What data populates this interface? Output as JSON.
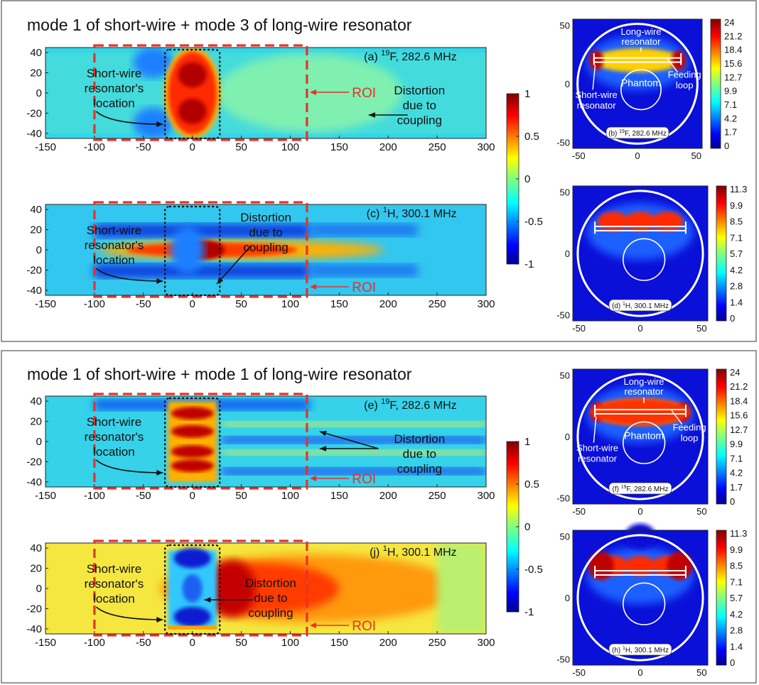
{
  "panel_groups": [
    {
      "title": "mode 1 of short-wire + mode 3 of long-wire resonator",
      "heatmaps": [
        {
          "label_a": "(a) ",
          "label_sup": "19",
          "label_b": "F, 282.6 MHz",
          "pattern": "mode3_19F",
          "x_ticks": [
            "-150",
            "-100",
            "-50",
            "0",
            "50",
            "100",
            "150",
            "200",
            "250",
            "300"
          ],
          "y_ticks": [
            "40",
            "20",
            "0",
            "-20",
            "-40"
          ],
          "ann_short": [
            "Short-wire",
            "resonator's",
            "location"
          ],
          "ann_distortion": [
            "Distortion",
            "due to",
            "coupling"
          ],
          "roi": "ROI"
        },
        {
          "label_a": "(c) ",
          "label_sup": "1",
          "label_b": "H, 300.1 MHz",
          "pattern": "mode3_1H",
          "x_ticks": [
            "-150",
            "-100",
            "-50",
            "0",
            "50",
            "100",
            "150",
            "200",
            "250",
            "300"
          ],
          "y_ticks": [
            "40",
            "20",
            "0",
            "-20",
            "-40"
          ],
          "ann_short": [
            "Short-wire",
            "resonator's",
            "location"
          ],
          "ann_distortion": [
            "Distortion",
            "due to",
            "coupling"
          ],
          "roi": "ROI"
        }
      ],
      "colorbar_ticks": [
        "1",
        "0.5",
        "0",
        "-0.5",
        "-1"
      ],
      "cross_sections": [
        {
          "label_a": "(b) ",
          "label_sup": "19",
          "label_b": "F, 282.6 MHz",
          "cbar_ticks": [
            "24",
            "21.2",
            "18.4",
            "15.6",
            "12.7",
            "9.9",
            "7.1",
            "4.2",
            "1.7",
            "0"
          ],
          "x_ticks": [
            "-50",
            "0",
            "50"
          ],
          "y_ticks": [
            "50",
            "0",
            "-50"
          ],
          "ann_long": [
            "Long-wire",
            "resonator"
          ],
          "ann_phantom": "Phantom",
          "ann_feed": [
            "Feeding",
            "loop"
          ],
          "ann_short": [
            "Short-wire",
            "resonator"
          ]
        },
        {
          "label_a": "(d) ",
          "label_sup": "1",
          "label_b": "H, 300.1 MHz",
          "cbar_ticks": [
            "11.3",
            "9.9",
            "8.5",
            "7.1",
            "5.7",
            "4.2",
            "2.8",
            "1.4",
            "0"
          ],
          "x_ticks": [
            "-50",
            "0",
            "50"
          ],
          "y_ticks": [
            "50",
            "0",
            "-50"
          ]
        }
      ]
    },
    {
      "title": "mode 1 of short-wire + mode 1 of long-wire resonator",
      "heatmaps": [
        {
          "label_a": "(e) ",
          "label_sup": "19",
          "label_b": "F, 282.6 MHz",
          "pattern": "mode1_19F",
          "x_ticks": [
            "-150",
            "-100",
            "-50",
            "0",
            "50",
            "100",
            "150",
            "200",
            "250",
            "300"
          ],
          "y_ticks": [
            "40",
            "20",
            "0",
            "-20",
            "-40"
          ],
          "ann_short": [
            "Short-wire",
            "resonator's",
            "location"
          ],
          "ann_distortion": [
            "Distortion",
            "due to",
            "coupling"
          ],
          "roi": "ROI"
        },
        {
          "label_a": "(j) ",
          "label_sup": "1",
          "label_b": "H, 300.1 MHz",
          "pattern": "mode1_1H",
          "x_ticks": [
            "-150",
            "-100",
            "-50",
            "0",
            "50",
            "100",
            "150",
            "200",
            "250",
            "300"
          ],
          "y_ticks": [
            "40",
            "20",
            "0",
            "-20",
            "-40"
          ],
          "ann_short": [
            "Short-wire",
            "resonator's",
            "location"
          ],
          "ann_distortion": [
            "Distortion",
            "due to",
            "coupling"
          ],
          "roi": "ROI"
        }
      ],
      "colorbar_ticks": [
        "1",
        "0.5",
        "0",
        "-0.5",
        "-1"
      ],
      "cross_sections": [
        {
          "label_a": "(f) ",
          "label_sup": "19",
          "label_b": "F, 282.6 MHz",
          "cbar_ticks": [
            "24",
            "21.2",
            "18.4",
            "15.6",
            "12.7",
            "9.9",
            "7.1",
            "4.2",
            "1.7",
            "0"
          ],
          "x_ticks": [
            "-50",
            "0",
            "50"
          ],
          "y_ticks": [
            "50",
            "0",
            "-50"
          ],
          "ann_long": [
            "Long-wire",
            "resonator"
          ],
          "ann_phantom": "Phantom",
          "ann_feed": [
            "Feeding",
            "loop"
          ],
          "ann_short": [
            "Short-wire",
            "resonator"
          ]
        },
        {
          "label_a": "(h) ",
          "label_sup": "1",
          "label_b": "H, 300.1 MHz",
          "cbar_ticks": [
            "11.3",
            "9.9",
            "8.5",
            "7.1",
            "5.7",
            "4.2",
            "2.8",
            "1.4",
            "0"
          ],
          "x_ticks": [
            "-50",
            "0",
            "50"
          ],
          "y_ticks": [
            "50",
            "0",
            "-50"
          ]
        }
      ]
    }
  ],
  "colors": {
    "roi_dash": "#e8312a",
    "dotted_box": "#111111",
    "frame": "#555555",
    "background_field": "#3fd0e0"
  }
}
